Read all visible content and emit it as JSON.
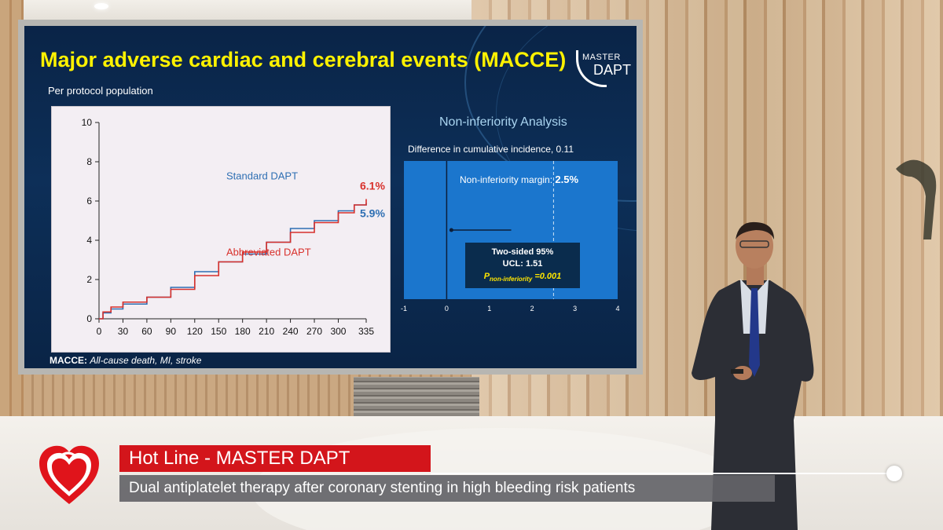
{
  "slide": {
    "title": "Major adverse cardiac and cerebral events (MACCE)",
    "subtitle": "Per protocol population",
    "logo_top": "MASTER",
    "logo_bottom": "DAPT",
    "footnote_label": "MACCE:",
    "footnote_text": "All-cause death, MI, stroke"
  },
  "chart_data": [
    {
      "type": "line",
      "title": "",
      "xlabel": "",
      "ylabel": "",
      "x_ticks": [
        0,
        30,
        60,
        90,
        120,
        150,
        180,
        210,
        240,
        270,
        300,
        335
      ],
      "y_ticks": [
        0,
        2,
        4,
        6,
        8,
        10
      ],
      "xlim": [
        0,
        335
      ],
      "ylim": [
        0,
        10
      ],
      "series": [
        {
          "name": "Standard DAPT",
          "color": "#2e6fb3",
          "end_label": "5.9%",
          "x": [
            0,
            5,
            15,
            30,
            60,
            90,
            120,
            150,
            180,
            210,
            240,
            270,
            300,
            320,
            335
          ],
          "y": [
            0,
            0.3,
            0.5,
            0.75,
            1.1,
            1.6,
            2.4,
            2.9,
            3.3,
            3.9,
            4.6,
            5.0,
            5.5,
            5.8,
            5.9
          ]
        },
        {
          "name": "Abbreviated DAPT",
          "color": "#d8312c",
          "end_label": "6.1%",
          "x": [
            0,
            5,
            15,
            30,
            60,
            90,
            120,
            150,
            180,
            210,
            240,
            270,
            300,
            320,
            335
          ],
          "y": [
            0,
            0.35,
            0.6,
            0.85,
            1.1,
            1.5,
            2.2,
            2.9,
            3.4,
            3.9,
            4.4,
            4.9,
            5.4,
            5.8,
            6.1
          ]
        }
      ]
    },
    {
      "type": "forest",
      "title": "Non-inferiority Analysis",
      "difference_label": "Difference in cumulative incidence, 0.11",
      "x_ticks": [
        -1,
        0,
        1,
        2,
        3,
        4
      ],
      "xlim": [
        -1,
        4
      ],
      "point_estimate": 0.11,
      "ucl": 1.51,
      "margin": 2.5,
      "margin_label": "Non-inferiority margin:",
      "margin_value": "2.5%",
      "ucl_box": {
        "line1": "Two-sided 95%",
        "line2": "UCL: 1.51",
        "p_symbol": "P",
        "p_sub": "non-inferiority",
        "p_value": "=0.001"
      }
    }
  ],
  "lower_third": {
    "headline": "Hot Line - MASTER DAPT",
    "subtitle": "Dual antiplatelet therapy after coronary stenting in high bleeding risk patients",
    "headline_color": "#d3151b"
  }
}
